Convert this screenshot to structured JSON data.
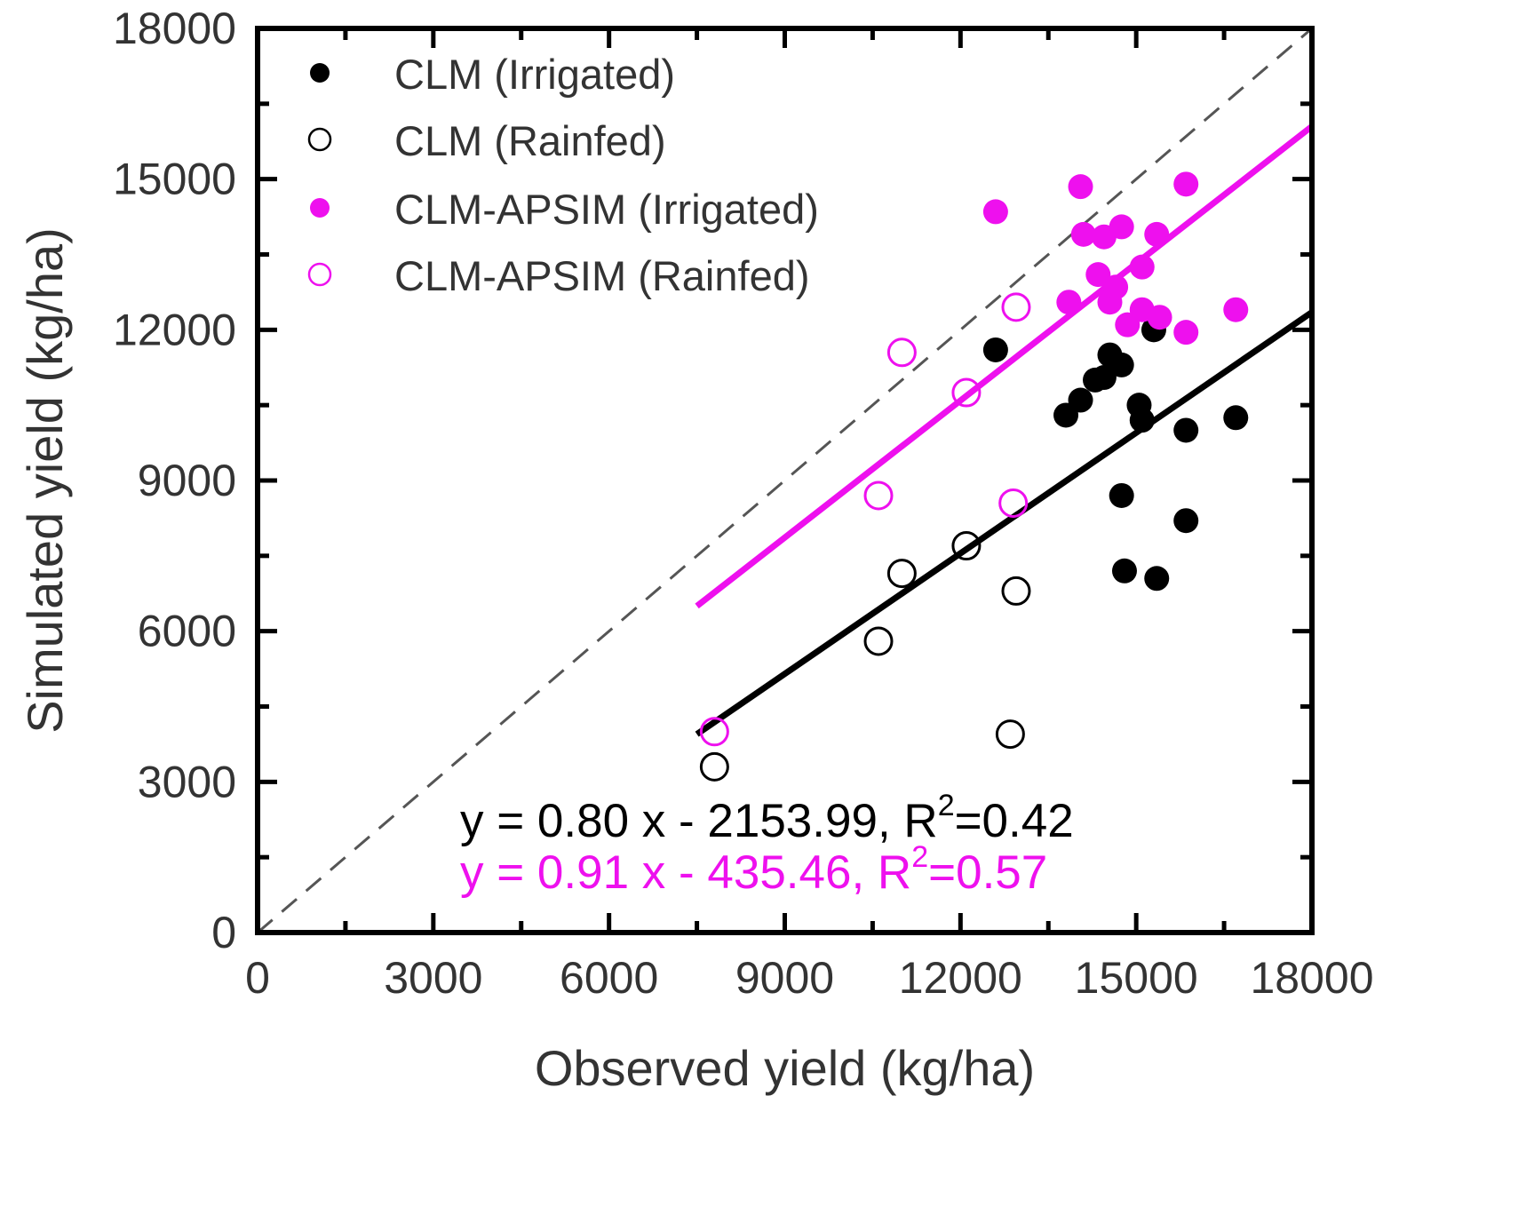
{
  "chart_data": {
    "type": "scatter",
    "title": "",
    "xlabel": "Observed yield (kg/ha)",
    "ylabel": "Simulated yield (kg/ha)",
    "xlim": [
      0,
      18000
    ],
    "ylim": [
      0,
      18000
    ],
    "xticks": [
      0,
      3000,
      6000,
      9000,
      12000,
      15000,
      18000
    ],
    "yticks": [
      0,
      3000,
      6000,
      9000,
      12000,
      15000,
      18000
    ],
    "grid": false,
    "legend_position": "top-left",
    "one_to_one_line": true,
    "series": [
      {
        "name": "CLM (Irrigated)",
        "marker": "filled",
        "color": "#000000",
        "points": [
          [
            12600,
            11600
          ],
          [
            13800,
            10300
          ],
          [
            14050,
            10600
          ],
          [
            14300,
            11000
          ],
          [
            14450,
            11050
          ],
          [
            14550,
            11500
          ],
          [
            14750,
            11300
          ],
          [
            14750,
            8700
          ],
          [
            14800,
            7200
          ],
          [
            15050,
            10500
          ],
          [
            15100,
            10200
          ],
          [
            15300,
            12000
          ],
          [
            15350,
            7050
          ],
          [
            15850,
            10000
          ],
          [
            15850,
            8200
          ],
          [
            16700,
            10250
          ]
        ]
      },
      {
        "name": "CLM (Rainfed)",
        "marker": "open",
        "color": "#000000",
        "points": [
          [
            7800,
            3300
          ],
          [
            10600,
            5800
          ],
          [
            11000,
            7150
          ],
          [
            12100,
            7700
          ],
          [
            12850,
            3950
          ],
          [
            12950,
            6800
          ]
        ]
      },
      {
        "name": "CLM-APSIM (Irrigated)",
        "marker": "filled",
        "color": "#ee10ee",
        "points": [
          [
            12600,
            14350
          ],
          [
            13850,
            12550
          ],
          [
            14050,
            14850
          ],
          [
            14100,
            13900
          ],
          [
            14350,
            13100
          ],
          [
            14450,
            13850
          ],
          [
            14550,
            12550
          ],
          [
            14650,
            12850
          ],
          [
            14750,
            14050
          ],
          [
            14850,
            12100
          ],
          [
            15100,
            13250
          ],
          [
            15100,
            12400
          ],
          [
            15350,
            13900
          ],
          [
            15400,
            12250
          ],
          [
            15850,
            14900
          ],
          [
            15850,
            11950
          ],
          [
            16700,
            12400
          ]
        ]
      },
      {
        "name": "CLM-APSIM (Rainfed)",
        "marker": "open",
        "color": "#ee10ee",
        "points": [
          [
            7800,
            4000
          ],
          [
            10600,
            8700
          ],
          [
            11000,
            11550
          ],
          [
            12100,
            10750
          ],
          [
            12900,
            8550
          ],
          [
            12950,
            12450
          ]
        ]
      }
    ],
    "regressions": [
      {
        "color": "#000000",
        "x_range": [
          7500,
          18000
        ],
        "y_range": [
          3950,
          12350
        ],
        "equation_text": "y = 0.80 x - 2153.99, R",
        "equation_sup": "2",
        "equation_tail": "=0.42"
      },
      {
        "color": "#ee10ee",
        "x_range": [
          7500,
          18000
        ],
        "y_range": [
          6500,
          16050
        ],
        "equation_text": "y = 0.91 x - 435.46, R",
        "equation_sup": "2",
        "equation_tail": "=0.57"
      }
    ]
  }
}
